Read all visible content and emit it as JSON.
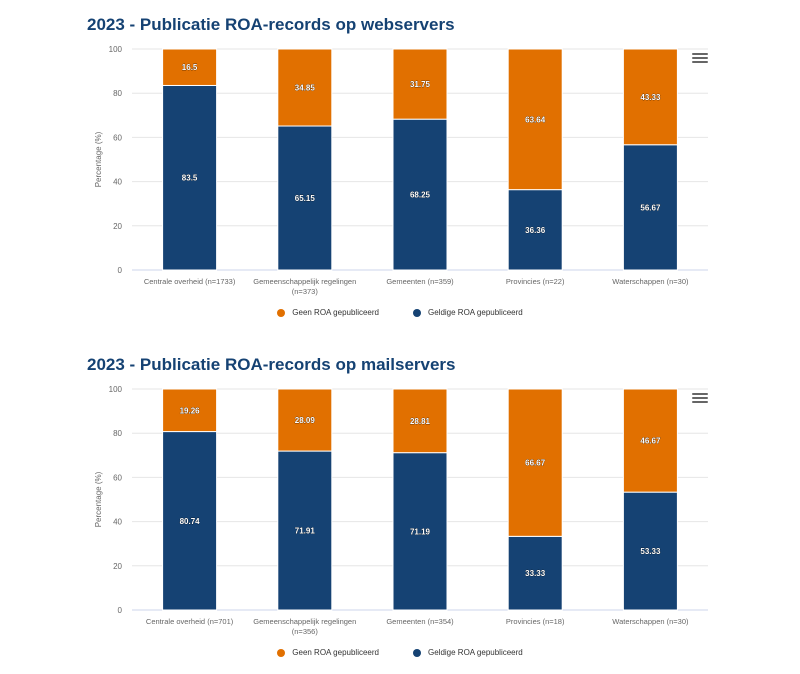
{
  "colors": {
    "orange": "#e17000",
    "blue": "#154273",
    "title": "#154273",
    "grid": "#e6e6e6"
  },
  "menu_icon": "hamburger-menu-icon",
  "chart_data": [
    {
      "type": "bar",
      "stacked": true,
      "title": "2023 - Publicatie ROA-records op webservers",
      "ylabel": "Percentage (%)",
      "ylim": [
        0,
        100
      ],
      "yticks": [
        "0",
        "20",
        "40",
        "60",
        "80",
        "100"
      ],
      "grid": true,
      "legend_position": "bottom-center",
      "categories": [
        [
          "Centrale overheid (n=1733)"
        ],
        [
          "Gemeenschappelijk regelingen",
          "(n=373)"
        ],
        [
          "Gemeenten (n=359)"
        ],
        [
          "Provincies (n=22)"
        ],
        [
          "Waterschappen (n=30)"
        ]
      ],
      "series": [
        {
          "name": "Geldige ROA gepubliceerd",
          "color": "#154273",
          "values": [
            83.5,
            65.15,
            68.25,
            36.36,
            56.67
          ],
          "labels": [
            "83.5",
            "65.15",
            "68.25",
            "36.36",
            "56.67"
          ]
        },
        {
          "name": "Geen ROA gepubliceerd",
          "color": "#e17000",
          "values": [
            16.5,
            34.85,
            31.75,
            63.64,
            43.33
          ],
          "labels": [
            "16.5",
            "34.85",
            "31.75",
            "63.64",
            "43.33"
          ]
        }
      ],
      "legend": [
        "Geen ROA gepubliceerd",
        "Geldige ROA gepubliceerd"
      ]
    },
    {
      "type": "bar",
      "stacked": true,
      "title": "2023 - Publicatie ROA-records op mailservers",
      "ylabel": "Percentage (%)",
      "ylim": [
        0,
        100
      ],
      "yticks": [
        "0",
        "20",
        "40",
        "60",
        "80",
        "100"
      ],
      "grid": true,
      "legend_position": "bottom-center",
      "categories": [
        [
          "Centrale overheid (n=701)"
        ],
        [
          "Gemeenschappelijk regelingen",
          "(n=356)"
        ],
        [
          "Gemeenten (n=354)"
        ],
        [
          "Provincies (n=18)"
        ],
        [
          "Waterschappen (n=30)"
        ]
      ],
      "series": [
        {
          "name": "Geldige ROA gepubliceerd",
          "color": "#154273",
          "values": [
            80.74,
            71.91,
            71.19,
            33.33,
            53.33
          ],
          "labels": [
            "80.74",
            "71.91",
            "71.19",
            "33.33",
            "53.33"
          ]
        },
        {
          "name": "Geen ROA gepubliceerd",
          "color": "#e17000",
          "values": [
            19.26,
            28.09,
            28.81,
            66.67,
            46.67
          ],
          "labels": [
            "19.26",
            "28.09",
            "28.81",
            "66.67",
            "46.67"
          ]
        }
      ],
      "legend": [
        "Geen ROA gepubliceerd",
        "Geldige ROA gepubliceerd"
      ]
    }
  ]
}
